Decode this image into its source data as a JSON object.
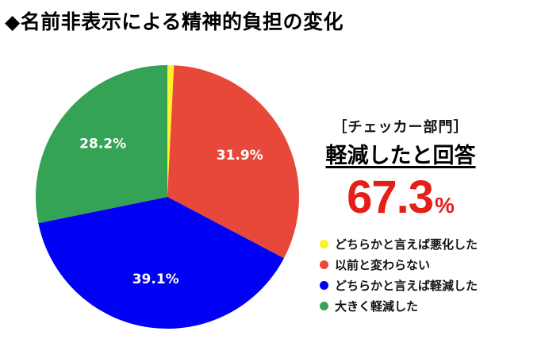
{
  "title": "◆名前非表示による精神的負担の変化",
  "callout": {
    "section_label": "［チェッカー部門］",
    "headline": "軽減したと回答",
    "value": "67.3",
    "unit": "%"
  },
  "chart_data": {
    "type": "pie",
    "slices": [
      {
        "label": "どちらかと言えば悪化した",
        "value": 0.8,
        "value_label": "",
        "color": "#fdf12b"
      },
      {
        "label": "以前と変わらない",
        "value": 31.9,
        "value_label": "31.9%",
        "color": "#e8483a"
      },
      {
        "label": "どちらかと言えば軽減した",
        "value": 39.1,
        "value_label": "39.1%",
        "color": "#0000f5"
      },
      {
        "label": "大きく軽減した",
        "value": 28.2,
        "value_label": "28.2%",
        "color": "#34a355"
      }
    ]
  }
}
